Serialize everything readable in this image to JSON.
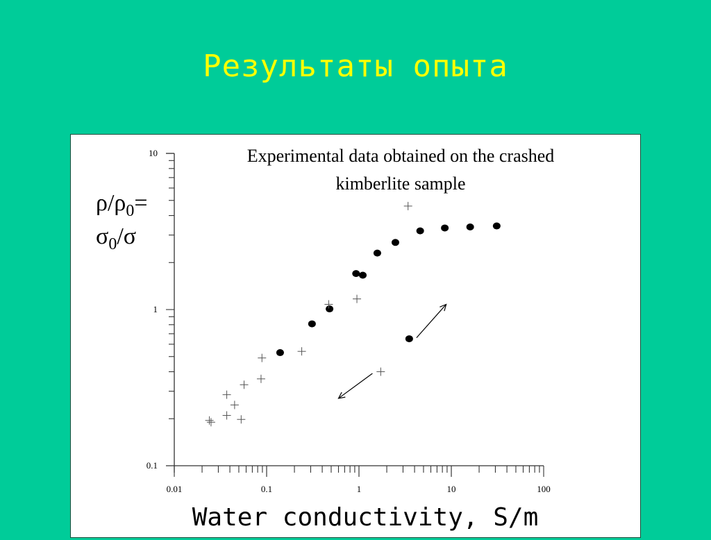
{
  "slide": {
    "title": "Результаты опыта",
    "background": "#00CC99",
    "title_color": "#FFFF00"
  },
  "chart_data": {
    "type": "scatter",
    "title": "Experimental data obtained on the crashed kimberlite sample",
    "title_lines": [
      "Experimental data obtained on the crashed",
      "kimberlite sample"
    ],
    "xlabel": "Water conductivity, S/m",
    "ylabel_lines": [
      "ρ/ρ0=",
      "σ0/σ"
    ],
    "xscale": "log",
    "yscale": "log",
    "xlim": [
      0.01,
      100
    ],
    "ylim": [
      0.1,
      10
    ],
    "x_ticks": [
      "0.01",
      "0.1",
      "1",
      "10",
      "100"
    ],
    "y_ticks": [
      "0.1",
      "1",
      "10"
    ],
    "grid": false,
    "series": [
      {
        "name": "filled circles",
        "marker": "circle",
        "points": [
          [
            0.14,
            0.53
          ],
          [
            0.31,
            0.81
          ],
          [
            0.48,
            1.01
          ],
          [
            0.93,
            1.7
          ],
          [
            1.1,
            1.66
          ],
          [
            1.58,
            2.3
          ],
          [
            2.48,
            2.69
          ],
          [
            4.6,
            3.19
          ],
          [
            8.5,
            3.33
          ],
          [
            16.0,
            3.38
          ],
          [
            31.0,
            3.43
          ],
          [
            3.5,
            0.65
          ]
        ]
      },
      {
        "name": "crosses",
        "marker": "plus",
        "points": [
          [
            0.024,
            0.195
          ],
          [
            0.025,
            0.19
          ],
          [
            0.037,
            0.285
          ],
          [
            0.037,
            0.21
          ],
          [
            0.045,
            0.245
          ],
          [
            0.053,
            0.198
          ],
          [
            0.057,
            0.33
          ],
          [
            0.087,
            0.36
          ],
          [
            0.089,
            0.49
          ],
          [
            0.24,
            0.54
          ],
          [
            0.47,
            1.08
          ],
          [
            0.95,
            1.17
          ],
          [
            1.72,
            0.4
          ],
          [
            3.4,
            4.6
          ]
        ]
      }
    ],
    "annotations": [
      {
        "type": "arrow",
        "from": [
          1.4,
          0.39
        ],
        "to": [
          0.6,
          0.27
        ],
        "direction": "down-left"
      },
      {
        "type": "arrow",
        "from": [
          4.2,
          0.66
        ],
        "to": [
          8.8,
          1.08
        ],
        "direction": "up-right"
      }
    ]
  }
}
